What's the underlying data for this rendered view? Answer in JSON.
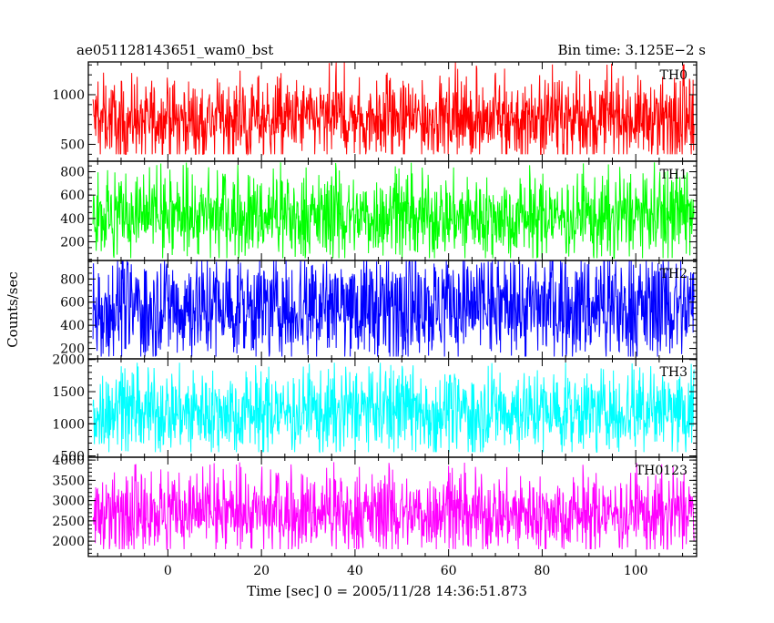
{
  "chart_data": {
    "type": "line",
    "title": "ae051128143651_wam0_bst",
    "bin_time": "Bin time: 3.125E−2 s",
    "xlabel": "Time [sec] 0 = 2005/11/28 14:36:51.873",
    "ylabel": "Counts/sec",
    "xlim": [
      -17,
      113
    ],
    "data_x_range": [
      -16.0,
      112.5
    ],
    "x_ticks": [
      0,
      20,
      40,
      60,
      80,
      100
    ],
    "x_tick_labels": [
      "0",
      "20",
      "40",
      "60",
      "80",
      "100"
    ],
    "grid": false,
    "panels": [
      {
        "name": "TH0",
        "color": "#ff0000",
        "ylim": [
          330,
          1330
        ],
        "y_ticks": [
          500,
          1000
        ],
        "y_tick_labels": [
          "500",
          "1000"
        ],
        "mean": 760,
        "band_low": 560,
        "band_high": 980,
        "spike_low": 400,
        "spike_high": 1330
      },
      {
        "name": "TH1",
        "color": "#00ff00",
        "ylim": [
          40,
          890
        ],
        "y_ticks": [
          200,
          400,
          600,
          800
        ],
        "y_tick_labels": [
          "200",
          "400",
          "600",
          "800"
        ],
        "mean": 420,
        "band_low": 250,
        "band_high": 620,
        "spike_low": 60,
        "spike_high": 880
      },
      {
        "name": "TH2",
        "color": "#0000ff",
        "ylim": [
          110,
          960
        ],
        "y_ticks": [
          200,
          400,
          600,
          800
        ],
        "y_tick_labels": [
          "200",
          "400",
          "600",
          "800"
        ],
        "mean": 560,
        "band_low": 300,
        "band_high": 820,
        "spike_low": 130,
        "spike_high": 960
      },
      {
        "name": "TH3",
        "color": "#00ffff",
        "ylim": [
          480,
          2010
        ],
        "y_ticks": [
          500,
          1000,
          1500,
          2000
        ],
        "y_tick_labels": [
          "500",
          "1000",
          "1500",
          "2000"
        ],
        "mean": 1200,
        "band_low": 850,
        "band_high": 1550,
        "spike_low": 560,
        "spike_high": 1950
      },
      {
        "name": "TH0123",
        "color": "#ff00ff",
        "ylim": [
          1620,
          4070
        ],
        "y_ticks": [
          2000,
          2500,
          3000,
          3500,
          4000
        ],
        "y_tick_labels": [
          "2000",
          "2500",
          "3000",
          "3500",
          "4000"
        ],
        "mean": 2700,
        "band_low": 2250,
        "band_high": 3250,
        "spike_low": 1800,
        "spike_high": 3950
      }
    ]
  }
}
